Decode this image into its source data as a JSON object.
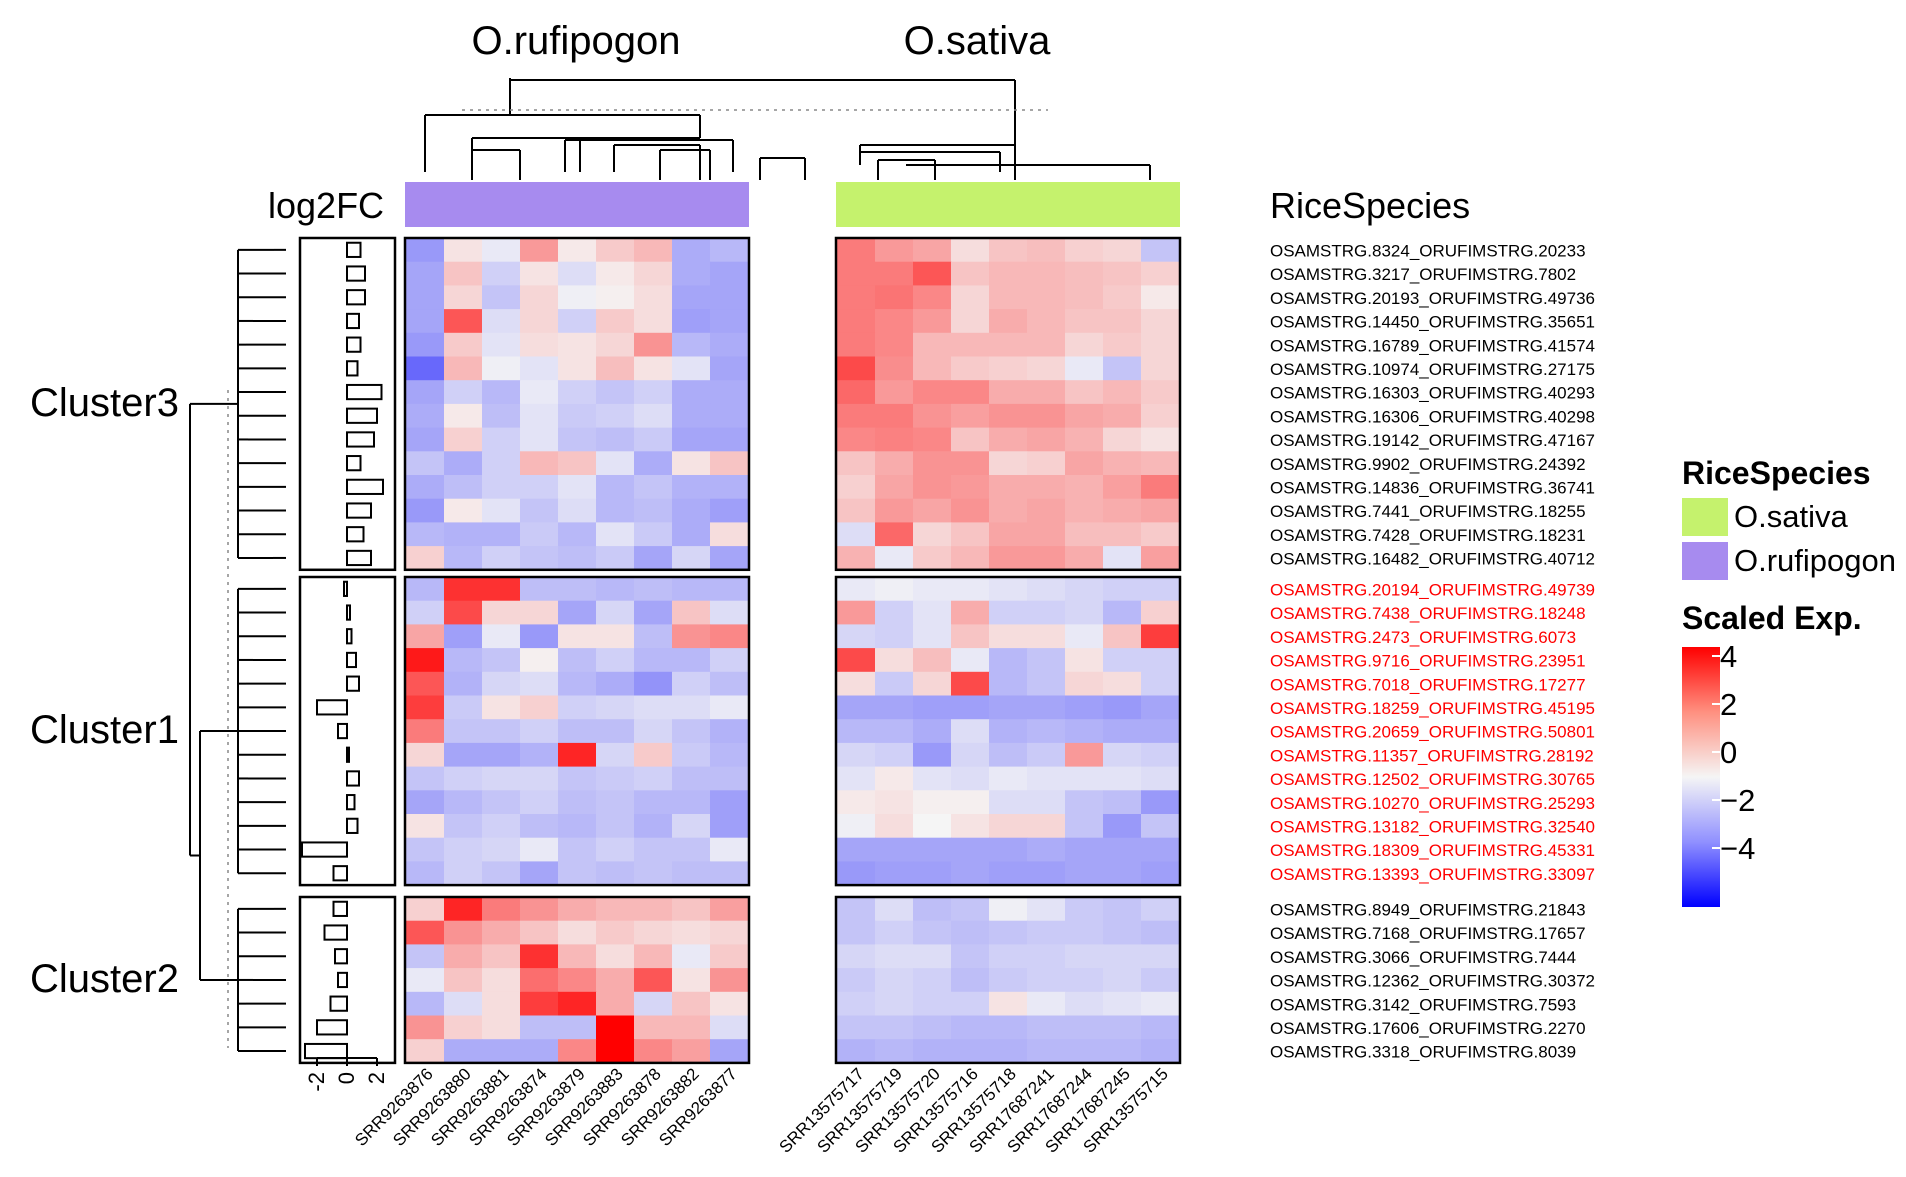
{
  "chart_data": {
    "type": "heatmap",
    "title": "",
    "column_groups": [
      {
        "name": "O.rufipogon",
        "color": "#a78bef",
        "samples": [
          "SRR9263876",
          "SRR9263880",
          "SRR9263881",
          "SRR9263874",
          "SRR9263879",
          "SRR9263883",
          "SRR9263878",
          "SRR9263882",
          "SRR9263877"
        ]
      },
      {
        "name": "O.sativa",
        "color": "#c5f26d",
        "samples": [
          "SRR13575717",
          "SRR13575719",
          "SRR13575720",
          "SRR13575716",
          "SRR13575718",
          "SRR17687241",
          "SRR17687244",
          "SRR17687245",
          "SRR13575715"
        ]
      }
    ],
    "annotation_label": "RiceSpecies",
    "log2fc_label": "log2FC",
    "log2fc_axis_ticks": [
      "-2",
      "0",
      "2"
    ],
    "log2fc_range": [
      -3,
      3
    ],
    "clusters": [
      {
        "name": "Cluster3",
        "label_color": "#000000",
        "genes": [
          {
            "id": "OSAMSTRG.8324_ORUFIMSTRG.20233",
            "log2fc": 0.9,
            "values": [
              -1.5,
              0.3,
              -0.2,
              1.5,
              0.2,
              0.7,
              1.0,
              -1.2,
              -1.0,
              2.0,
              1.5,
              1.3,
              0.4,
              0.8,
              0.9,
              0.6,
              0.5,
              -0.8
            ]
          },
          {
            "id": "OSAMSTRG.3217_ORUFIMSTRG.7802",
            "log2fc": 1.2,
            "values": [
              -1.3,
              0.8,
              -0.6,
              0.3,
              -0.4,
              0.2,
              0.5,
              -1.2,
              -1.3,
              2.0,
              2.0,
              2.6,
              0.8,
              1.0,
              1.0,
              0.9,
              0.8,
              0.6
            ]
          },
          {
            "id": "OSAMSTRG.20193_ORUFIMSTRG.49736",
            "log2fc": 1.2,
            "values": [
              -1.3,
              0.5,
              -0.8,
              0.5,
              -0.1,
              0.1,
              0.4,
              -1.3,
              -1.3,
              2.0,
              2.1,
              1.8,
              0.5,
              1.0,
              1.0,
              0.9,
              0.7,
              0.2
            ]
          },
          {
            "id": "OSAMSTRG.14450_ORUFIMSTRG.35651",
            "log2fc": 0.8,
            "values": [
              -1.3,
              2.6,
              -0.4,
              0.5,
              -0.6,
              0.7,
              0.4,
              -1.4,
              -1.3,
              2.0,
              1.8,
              1.5,
              0.5,
              1.2,
              1.0,
              0.8,
              0.8,
              0.5
            ]
          },
          {
            "id": "OSAMSTRG.16789_ORUFIMSTRG.41574",
            "log2fc": 0.9,
            "values": [
              -1.5,
              0.7,
              -0.3,
              0.4,
              0.3,
              0.5,
              1.6,
              -1.0,
              -1.2,
              2.0,
              1.8,
              1.0,
              1.0,
              1.0,
              1.0,
              0.5,
              0.7,
              0.5
            ]
          },
          {
            "id": "OSAMSTRG.10974_ORUFIMSTRG.27175",
            "log2fc": 0.7,
            "values": [
              -2.3,
              1.0,
              -0.1,
              -0.3,
              0.3,
              0.9,
              0.3,
              -0.3,
              -1.3,
              2.8,
              1.7,
              1.0,
              0.7,
              0.6,
              0.5,
              -0.2,
              -0.8,
              0.5
            ]
          },
          {
            "id": "OSAMSTRG.16303_ORUFIMSTRG.40293",
            "log2fc": 2.3,
            "values": [
              -1.3,
              -0.6,
              -1.0,
              -0.2,
              -0.6,
              -0.8,
              -0.6,
              -1.2,
              -1.2,
              2.3,
              1.5,
              1.8,
              1.8,
              1.2,
              1.2,
              0.8,
              1.0,
              0.7
            ]
          },
          {
            "id": "OSAMSTRG.16306_ORUFIMSTRG.40298",
            "log2fc": 2.0,
            "values": [
              -1.2,
              0.2,
              -0.9,
              -0.3,
              -0.7,
              -0.6,
              -0.4,
              -1.2,
              -1.2,
              2.0,
              2.0,
              1.6,
              1.4,
              1.6,
              1.6,
              1.3,
              1.2,
              0.6
            ]
          },
          {
            "id": "OSAMSTRG.19142_ORUFIMSTRG.47167",
            "log2fc": 1.8,
            "values": [
              -1.3,
              0.6,
              -0.6,
              -0.3,
              -0.8,
              -0.9,
              -0.7,
              -1.3,
              -1.3,
              1.8,
              1.9,
              1.8,
              0.8,
              1.2,
              1.3,
              1.1,
              0.5,
              0.3
            ]
          },
          {
            "id": "OSAMSTRG.9902_ORUFIMSTRG.24392",
            "log2fc": 0.9,
            "values": [
              -0.8,
              -1.2,
              -0.6,
              1.0,
              0.8,
              -0.3,
              -1.2,
              0.3,
              0.8,
              0.8,
              1.2,
              1.6,
              1.6,
              0.5,
              0.6,
              1.3,
              1.1,
              1.0
            ]
          },
          {
            "id": "OSAMSTRG.14836_ORUFIMSTRG.36741",
            "log2fc": 2.4,
            "values": [
              -1.2,
              -0.9,
              -0.6,
              -0.6,
              -0.3,
              -1.0,
              -0.8,
              -1.1,
              -1.1,
              0.6,
              1.3,
              1.6,
              1.5,
              1.2,
              1.2,
              1.1,
              1.4,
              2.0
            ]
          },
          {
            "id": "OSAMSTRG.7441_ORUFIMSTRG.18255",
            "log2fc": 1.6,
            "values": [
              -1.5,
              0.2,
              -0.3,
              -0.8,
              -0.4,
              -1.0,
              -0.9,
              -1.2,
              -1.4,
              0.8,
              1.5,
              1.3,
              1.6,
              1.2,
              1.3,
              1.1,
              1.2,
              1.3
            ]
          },
          {
            "id": "OSAMSTRG.7428_ORUFIMSTRG.18231",
            "log2fc": 1.1,
            "values": [
              -1.0,
              -1.1,
              -1.1,
              -0.7,
              -1.0,
              -0.3,
              -0.7,
              -1.2,
              0.4,
              -0.4,
              2.3,
              0.5,
              0.8,
              1.3,
              1.3,
              0.9,
              0.9,
              0.7
            ]
          },
          {
            "id": "OSAMSTRG.16482_ORUFIMSTRG.40712",
            "log2fc": 1.6,
            "values": [
              0.6,
              -1.0,
              -0.6,
              -0.8,
              -0.9,
              -0.7,
              -1.3,
              -0.5,
              -1.3,
              1.1,
              -0.2,
              0.7,
              1.0,
              1.5,
              1.5,
              1.2,
              -0.3,
              1.4
            ]
          }
        ]
      },
      {
        "name": "Cluster1",
        "label_color": "#ff0000",
        "genes": [
          {
            "id": "OSAMSTRG.20194_ORUFIMSTRG.49739",
            "log2fc": -0.2,
            "values": [
              -1.0,
              3.2,
              3.2,
              -0.9,
              -0.9,
              -1.0,
              -0.9,
              -1.0,
              -1.0,
              -0.2,
              -0.1,
              -0.2,
              -0.2,
              -0.3,
              -0.4,
              -0.5,
              -0.6,
              -0.6
            ]
          },
          {
            "id": "OSAMSTRG.7438_ORUFIMSTRG.18248",
            "log2fc": 0.2,
            "values": [
              -0.6,
              2.8,
              0.5,
              0.5,
              -1.3,
              -0.5,
              -1.3,
              0.8,
              -0.4,
              1.5,
              -0.6,
              -0.3,
              1.2,
              -0.6,
              -0.6,
              -0.5,
              -1.0,
              0.6
            ]
          },
          {
            "id": "OSAMSTRG.2473_ORUFIMSTRG.6073",
            "log2fc": 0.3,
            "values": [
              1.3,
              -1.4,
              -0.2,
              -1.5,
              0.3,
              0.3,
              -0.9,
              1.6,
              1.8,
              -0.5,
              -0.6,
              -0.3,
              0.8,
              0.4,
              0.4,
              -0.2,
              0.8,
              3.0
            ]
          },
          {
            "id": "OSAMSTRG.9716_ORUFIMSTRG.23951",
            "log2fc": 0.6,
            "values": [
              3.6,
              -1.0,
              -0.8,
              0.1,
              -0.9,
              -0.6,
              -1.0,
              -1.0,
              -0.6,
              2.8,
              0.4,
              0.9,
              -0.2,
              -1.0,
              -0.8,
              0.3,
              -0.6,
              -0.6
            ]
          },
          {
            "id": "OSAMSTRG.7018_ORUFIMSTRG.17277",
            "log2fc": 0.8,
            "values": [
              2.6,
              -1.1,
              -0.5,
              -0.4,
              -1.0,
              -1.2,
              -1.6,
              -0.6,
              -0.9,
              0.4,
              -0.7,
              0.5,
              2.8,
              -1.0,
              -0.8,
              0.5,
              0.4,
              -0.6
            ]
          },
          {
            "id": "OSAMSTRG.18259_ORUFIMSTRG.45195",
            "log2fc": -2.0,
            "values": [
              3.0,
              -0.7,
              0.3,
              0.6,
              -0.6,
              -0.5,
              -0.4,
              -0.4,
              -0.2,
              -1.3,
              -1.3,
              -1.4,
              -1.4,
              -1.3,
              -1.3,
              -1.4,
              -1.5,
              -1.3
            ]
          },
          {
            "id": "OSAMSTRG.20659_ORUFIMSTRG.50801",
            "log2fc": -0.6,
            "values": [
              2.0,
              -0.8,
              -0.8,
              -0.6,
              -0.9,
              -0.9,
              -0.5,
              -0.8,
              -1.1,
              -1.0,
              -1.0,
              -1.2,
              -0.4,
              -1.1,
              -1.0,
              -1.1,
              -1.2,
              -1.2
            ]
          },
          {
            "id": "OSAMSTRG.11357_ORUFIMSTRG.28192",
            "log2fc": 0.0,
            "values": [
              0.5,
              -1.3,
              -1.3,
              -1.1,
              3.4,
              -0.5,
              0.7,
              -0.7,
              -1.0,
              -0.5,
              -0.6,
              -1.5,
              -0.5,
              -0.9,
              -0.7,
              1.5,
              -0.5,
              -0.6
            ]
          },
          {
            "id": "OSAMSTRG.12502_ORUFIMSTRG.30765",
            "log2fc": 0.8,
            "values": [
              -0.8,
              -0.6,
              -0.5,
              -0.5,
              -0.8,
              -0.7,
              -0.6,
              -0.9,
              -0.9,
              -0.3,
              0.2,
              -0.3,
              -0.4,
              -0.2,
              -0.3,
              -0.3,
              -0.3,
              -0.4
            ]
          },
          {
            "id": "OSAMSTRG.10270_ORUFIMSTRG.25293",
            "log2fc": 0.5,
            "values": [
              -1.3,
              -1.0,
              -0.8,
              -0.6,
              -0.9,
              -0.8,
              -1.0,
              -1.0,
              -1.4,
              0.2,
              0.3,
              0.1,
              0.1,
              -0.4,
              -0.4,
              -0.8,
              -0.9,
              -1.5
            ]
          },
          {
            "id": "OSAMSTRG.13182_ORUFIMSTRG.32540",
            "log2fc": 0.7,
            "values": [
              0.3,
              -0.8,
              -0.6,
              -0.9,
              -1.0,
              -0.8,
              -1.1,
              -0.5,
              -1.4,
              -0.1,
              0.4,
              0.0,
              0.3,
              0.5,
              0.5,
              -0.8,
              -1.5,
              -0.8
            ]
          },
          {
            "id": "OSAMSTRG.18309_ORUFIMSTRG.45331",
            "log2fc": -3.0,
            "values": [
              -0.8,
              -0.6,
              -0.5,
              -0.2,
              -0.8,
              -0.6,
              -0.8,
              -0.8,
              -0.2,
              -1.3,
              -1.3,
              -1.3,
              -1.3,
              -1.3,
              -1.2,
              -1.3,
              -1.3,
              -1.3
            ]
          },
          {
            "id": "OSAMSTRG.13393_ORUFIMSTRG.33097",
            "log2fc": -0.9,
            "values": [
              -1.0,
              -0.6,
              -0.8,
              -1.3,
              -0.8,
              -0.9,
              -0.8,
              -0.9,
              -0.9,
              -1.5,
              -1.4,
              -1.4,
              -1.3,
              -1.4,
              -1.4,
              -1.3,
              -1.3,
              -1.4
            ]
          }
        ]
      },
      {
        "name": "Cluster2",
        "label_color": "#000000",
        "genes": [
          {
            "id": "OSAMSTRG.8949_ORUFIMSTRG.21843",
            "log2fc": -0.9,
            "values": [
              0.6,
              3.4,
              2.0,
              1.6,
              1.2,
              1.0,
              1.0,
              0.8,
              1.4,
              -0.8,
              -0.4,
              -0.9,
              -0.8,
              -0.1,
              -0.3,
              -0.7,
              -0.8,
              -0.6
            ]
          },
          {
            "id": "OSAMSTRG.7168_ORUFIMSTRG.17657",
            "log2fc": -1.5,
            "values": [
              2.6,
              1.6,
              1.2,
              0.8,
              0.4,
              0.7,
              0.5,
              0.4,
              0.5,
              -0.8,
              -0.6,
              -0.8,
              -0.9,
              -0.8,
              -0.7,
              -0.7,
              -0.8,
              -0.9
            ]
          },
          {
            "id": "OSAMSTRG.3066_ORUFIMSTRG.7444",
            "log2fc": -0.8,
            "values": [
              -0.8,
              1.2,
              0.8,
              3.2,
              1.0,
              0.4,
              1.0,
              -0.2,
              0.7,
              -0.5,
              -0.4,
              -0.4,
              -0.8,
              -0.6,
              -0.6,
              -0.5,
              -0.5,
              -0.5
            ]
          },
          {
            "id": "OSAMSTRG.12362_ORUFIMSTRG.30372",
            "log2fc": -0.6,
            "values": [
              -0.2,
              0.8,
              0.4,
              2.2,
              1.8,
              1.2,
              2.6,
              0.3,
              1.6,
              -0.7,
              -0.5,
              -0.6,
              -0.9,
              -0.7,
              -0.6,
              -0.6,
              -0.5,
              -0.7
            ]
          },
          {
            "id": "OSAMSTRG.3142_ORUFIMSTRG.7593",
            "log2fc": -1.1,
            "values": [
              -1.0,
              -0.4,
              0.4,
              3.0,
              3.4,
              1.2,
              -0.5,
              0.8,
              0.3,
              -0.6,
              -0.5,
              -0.6,
              -0.6,
              0.3,
              -0.2,
              -0.4,
              -0.3,
              -0.2
            ]
          },
          {
            "id": "OSAMSTRG.17606_ORUFIMSTRG.2270",
            "log2fc": -2.0,
            "values": [
              1.6,
              0.6,
              0.4,
              -0.9,
              -0.9,
              4.0,
              1.0,
              1.0,
              -0.4,
              -0.8,
              -0.8,
              -0.9,
              -1.0,
              -1.0,
              -0.9,
              -0.9,
              -0.9,
              -1.0
            ]
          },
          {
            "id": "OSAMSTRG.3318_ORUFIMSTRG.8039",
            "log2fc": -2.8,
            "values": [
              0.6,
              -1.2,
              -1.2,
              -1.2,
              1.8,
              4.0,
              1.8,
              1.4,
              -1.3,
              -1.1,
              -1.0,
              -1.1,
              -1.1,
              -1.1,
              -1.0,
              -1.0,
              -1.0,
              -1.1
            ]
          }
        ]
      }
    ],
    "legend": {
      "species_title": "RiceSpecies",
      "species_items": [
        {
          "label": "O.sativa",
          "color": "#c5f26d"
        },
        {
          "label": "O.rufipogon",
          "color": "#a78bef"
        }
      ],
      "scale_title": "Scaled Exp.",
      "scale_ticks": [
        "4",
        "2",
        "0",
        "−2",
        "−4"
      ],
      "scale_range": [
        -4,
        4
      ],
      "scale_colors": {
        "high": "#ff0000",
        "mid": "#f5f5f5",
        "low": "#0000ff"
      }
    }
  }
}
